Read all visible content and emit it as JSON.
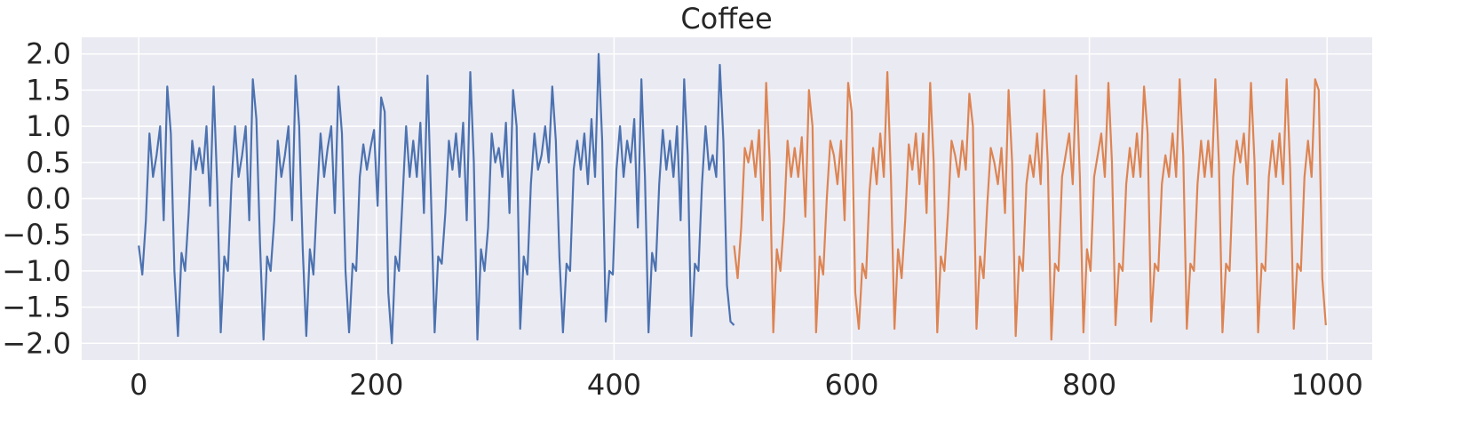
{
  "chart_data": {
    "type": "line",
    "title": "Coffee",
    "xlim": [
      -48,
      1038
    ],
    "ylim": [
      -2.23,
      2.23
    ],
    "xticks": [
      0,
      200,
      400,
      600,
      800,
      1000
    ],
    "yticks": [
      {
        "value": 2.0,
        "label": "2.0"
      },
      {
        "value": 1.5,
        "label": "1.5"
      },
      {
        "value": 1.0,
        "label": "1.0"
      },
      {
        "value": 0.5,
        "label": "0.5"
      },
      {
        "value": 0.0,
        "label": "0.0"
      },
      {
        "value": -0.5,
        "label": "−0.5"
      },
      {
        "value": -1.0,
        "label": "−1.0"
      },
      {
        "value": -1.5,
        "label": "−1.5"
      },
      {
        "value": -2.0,
        "label": "−2.0"
      }
    ],
    "grid": true,
    "series": [
      {
        "color": "#4c72b0",
        "x": [
          0,
          3,
          6,
          9,
          12,
          15,
          18,
          21,
          24,
          27,
          30,
          33,
          36,
          39,
          42,
          45,
          48,
          51,
          54,
          57,
          60,
          63,
          66,
          69,
          72,
          75,
          78,
          81,
          84,
          87,
          90,
          93,
          96,
          99,
          102,
          105,
          108,
          111,
          114,
          117,
          120,
          123,
          126,
          129,
          132,
          135,
          138,
          141,
          144,
          147,
          150,
          153,
          156,
          159,
          162,
          165,
          168,
          171,
          174,
          177,
          180,
          183,
          186,
          189,
          192,
          195,
          198,
          201,
          204,
          207,
          210,
          213,
          216,
          219,
          222,
          225,
          228,
          231,
          234,
          237,
          240,
          243,
          246,
          249,
          252,
          255,
          258,
          261,
          264,
          267,
          270,
          273,
          276,
          279,
          282,
          285,
          288,
          291,
          294,
          297,
          300,
          303,
          306,
          309,
          312,
          315,
          318,
          321,
          324,
          327,
          330,
          333,
          336,
          339,
          342,
          345,
          348,
          351,
          354,
          357,
          360,
          363,
          366,
          369,
          372,
          375,
          378,
          381,
          384,
          387,
          390,
          393,
          396,
          399,
          402,
          405,
          408,
          411,
          414,
          417,
          420,
          423,
          426,
          429,
          432,
          435,
          438,
          441,
          444,
          447,
          450,
          453,
          456,
          459,
          462,
          465,
          468,
          471,
          474,
          477,
          480,
          483,
          486,
          489,
          492,
          495,
          498,
          501
        ],
        "values": [
          -0.65,
          -1.05,
          -0.3,
          0.9,
          0.3,
          0.6,
          1.0,
          -0.3,
          1.55,
          0.9,
          -1.0,
          -1.9,
          -0.75,
          -1.0,
          -0.2,
          0.8,
          0.4,
          0.7,
          0.35,
          1.0,
          -0.1,
          1.55,
          0.2,
          -1.85,
          -0.8,
          -1.0,
          0.2,
          1.0,
          0.3,
          0.6,
          1.0,
          -0.3,
          1.65,
          1.1,
          -0.6,
          -1.95,
          -0.8,
          -1.0,
          -0.3,
          0.8,
          0.3,
          0.6,
          1.0,
          -0.3,
          1.7,
          1.0,
          -0.7,
          -1.9,
          -0.7,
          -1.05,
          0.0,
          0.9,
          0.3,
          0.7,
          1.0,
          -0.2,
          1.55,
          0.9,
          -1.0,
          -1.85,
          -0.9,
          -1.0,
          0.3,
          0.75,
          0.4,
          0.7,
          0.95,
          -0.1,
          1.4,
          1.2,
          -1.3,
          -2.0,
          -0.8,
          -1.0,
          0.0,
          1.0,
          0.3,
          0.8,
          0.3,
          1.05,
          -0.2,
          1.7,
          0.0,
          -1.85,
          -0.8,
          -0.9,
          -0.2,
          0.8,
          0.4,
          0.9,
          0.3,
          1.05,
          -0.3,
          1.75,
          0.5,
          -1.95,
          -0.7,
          -1.0,
          -0.4,
          0.9,
          0.5,
          0.7,
          0.3,
          1.05,
          -0.2,
          1.5,
          1.0,
          -1.8,
          -0.8,
          -1.05,
          0.2,
          0.9,
          0.4,
          0.6,
          1.0,
          0.5,
          1.55,
          0.8,
          -0.8,
          -1.85,
          -0.9,
          -1.0,
          0.4,
          0.8,
          0.4,
          0.9,
          0.2,
          1.1,
          0.3,
          2.0,
          0.8,
          -1.7,
          -1.0,
          -1.05,
          0.4,
          1.0,
          0.3,
          0.8,
          0.5,
          1.1,
          -0.4,
          1.65,
          0.3,
          -1.85,
          -0.75,
          -1.0,
          0.2,
          0.95,
          0.4,
          0.8,
          0.3,
          1.0,
          -0.3,
          1.65,
          0.6,
          -1.9,
          -0.9,
          -1.0,
          0.2,
          1.0,
          0.4,
          0.6,
          0.3,
          1.85,
          0.8,
          -1.2,
          -1.7,
          -1.75
        ]
      },
      {
        "color": "#dd8452",
        "x": [
          501,
          504,
          507,
          510,
          513,
          516,
          519,
          522,
          525,
          528,
          531,
          534,
          537,
          540,
          543,
          546,
          549,
          552,
          555,
          558,
          561,
          564,
          567,
          570,
          573,
          576,
          579,
          582,
          585,
          588,
          591,
          594,
          597,
          600,
          603,
          606,
          609,
          612,
          615,
          618,
          621,
          624,
          627,
          630,
          633,
          636,
          639,
          642,
          645,
          648,
          651,
          654,
          657,
          660,
          663,
          666,
          669,
          672,
          675,
          678,
          681,
          684,
          687,
          690,
          693,
          696,
          699,
          702,
          705,
          708,
          711,
          714,
          717,
          720,
          723,
          726,
          729,
          732,
          735,
          738,
          741,
          744,
          747,
          750,
          753,
          756,
          759,
          762,
          765,
          768,
          771,
          774,
          777,
          780,
          783,
          786,
          789,
          792,
          795,
          798,
          801,
          804,
          807,
          810,
          813,
          816,
          819,
          822,
          825,
          828,
          831,
          834,
          837,
          840,
          843,
          846,
          849,
          852,
          855,
          858,
          861,
          864,
          867,
          870,
          873,
          876,
          879,
          882,
          885,
          888,
          891,
          894,
          897,
          900,
          903,
          906,
          909,
          912,
          915,
          918,
          921,
          924,
          927,
          930,
          933,
          936,
          939,
          942,
          945,
          948,
          951,
          954,
          957,
          960,
          963,
          966,
          969,
          972,
          975,
          978,
          981,
          984,
          987,
          990,
          993,
          996,
          999
        ],
        "values": [
          -0.65,
          -1.1,
          -0.4,
          0.7,
          0.5,
          0.8,
          0.3,
          0.95,
          -0.3,
          1.6,
          0.5,
          -1.85,
          -0.7,
          -1.0,
          -0.3,
          0.8,
          0.3,
          0.7,
          0.3,
          0.85,
          -0.25,
          1.5,
          1.0,
          -1.85,
          -0.8,
          -1.05,
          0.0,
          0.8,
          0.6,
          0.2,
          0.8,
          -0.3,
          1.6,
          1.2,
          -1.3,
          -1.8,
          -0.9,
          -1.1,
          0.1,
          0.7,
          0.2,
          0.9,
          0.3,
          1.75,
          0.3,
          -1.8,
          -0.7,
          -1.1,
          -0.3,
          0.75,
          0.4,
          0.9,
          0.2,
          0.9,
          -0.2,
          1.6,
          0.5,
          -1.85,
          -0.8,
          -1.0,
          -0.2,
          0.8,
          0.6,
          0.3,
          0.8,
          0.4,
          1.45,
          1.0,
          -1.8,
          -0.8,
          -1.1,
          -0.1,
          0.7,
          0.5,
          0.2,
          0.7,
          -0.2,
          1.5,
          0.5,
          -1.9,
          -0.8,
          -1.0,
          0.2,
          0.6,
          0.3,
          0.9,
          0.2,
          1.5,
          0.5,
          -1.95,
          -0.9,
          -1.0,
          0.3,
          0.6,
          0.9,
          0.2,
          1.7,
          0.3,
          -1.85,
          -0.7,
          -1.0,
          0.3,
          0.6,
          0.9,
          0.3,
          1.6,
          0.5,
          -1.75,
          -0.9,
          -1.0,
          0.2,
          0.7,
          0.3,
          0.9,
          0.3,
          1.55,
          0.9,
          -1.7,
          -0.9,
          -1.0,
          0.2,
          0.6,
          0.3,
          0.9,
          0.3,
          1.65,
          0.6,
          -1.8,
          -0.9,
          -1.0,
          0.2,
          0.8,
          0.3,
          0.8,
          0.3,
          1.65,
          0.5,
          -1.85,
          -0.9,
          -1.0,
          0.3,
          0.8,
          0.5,
          0.9,
          0.2,
          1.6,
          0.5,
          -1.85,
          -0.9,
          -1.0,
          0.3,
          0.8,
          0.3,
          0.9,
          0.2,
          1.65,
          0.4,
          -1.8,
          -0.9,
          -1.0,
          0.3,
          0.8,
          0.3,
          1.65,
          1.5,
          -1.1,
          -1.75
        ]
      }
    ]
  }
}
